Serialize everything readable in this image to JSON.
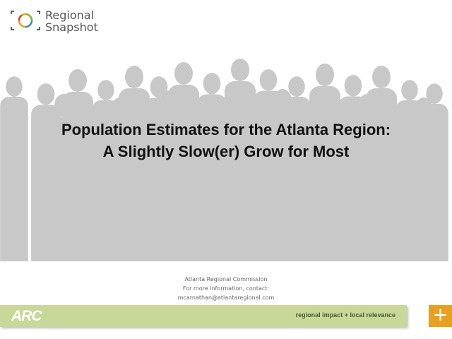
{
  "logo": {
    "line1": "Regional",
    "line2": "Snapshot",
    "ring_colors": [
      "#e8a020",
      "#8cb43c",
      "#3c8cc8",
      "#d04030"
    ]
  },
  "title": {
    "line1": "Population Estimates for the Atlanta Region:",
    "line2": "A Slightly Slow(er) Grow for Most"
  },
  "contact": {
    "org": "Atlanta Regional Commission",
    "info": "For more information, contact:",
    "email": "mcarnathan@atlantaregional.com"
  },
  "footer": {
    "logo_text": "ARC",
    "tagline": "regional impact + local relevance",
    "plus_label": "+",
    "band_color": "#c8d898",
    "accent_color": "#e8a020"
  },
  "background": {
    "icon": "crowd-silhouette",
    "color": "#c8c8c8"
  }
}
